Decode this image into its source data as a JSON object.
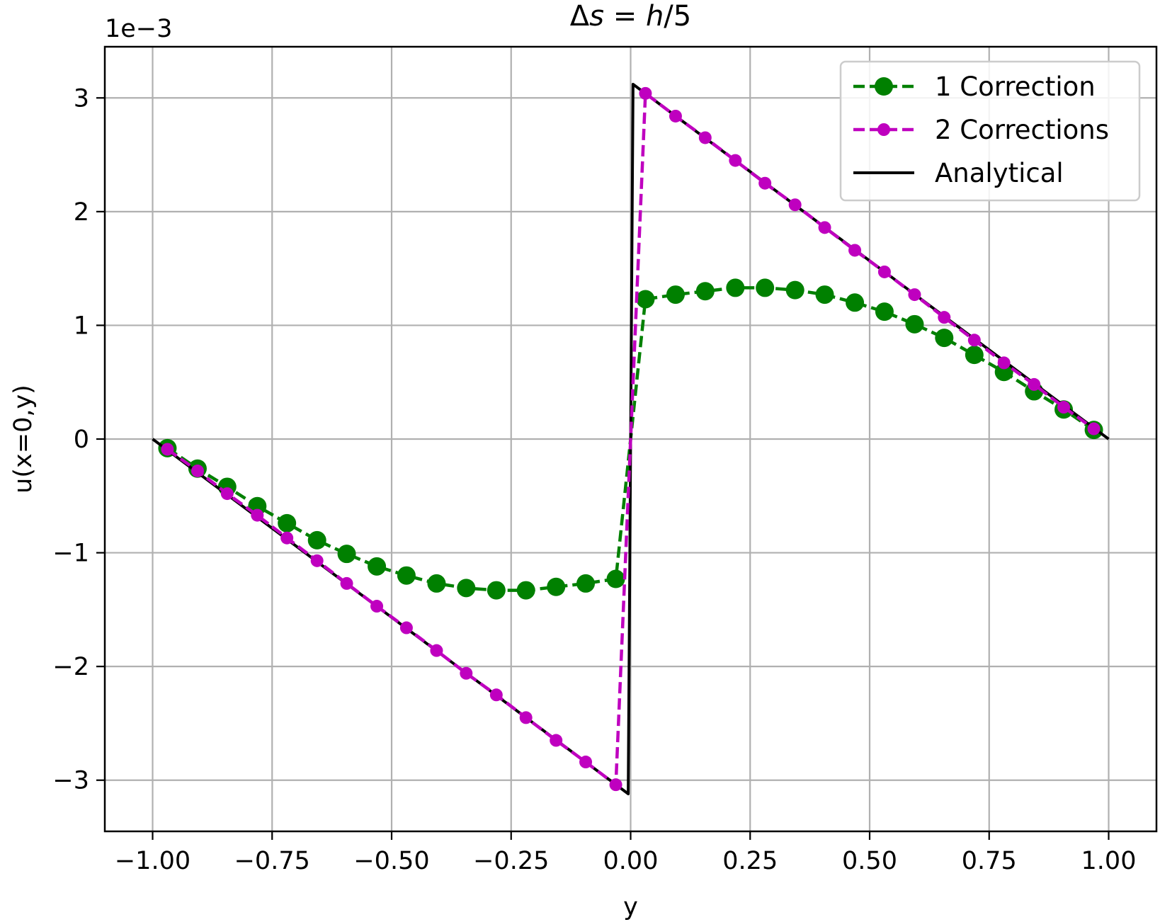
{
  "chart_data": {
    "type": "line",
    "title_parts": [
      "Δ",
      "s",
      " = ",
      "h",
      "/5"
    ],
    "xlabel": "y",
    "ylabel": "u(x=0,y)",
    "y_offset_label": "1e−3",
    "xlim": [
      -1.1,
      1.1
    ],
    "ylim": [
      -3.45,
      3.45
    ],
    "xticks": [
      -1.0,
      -0.75,
      -0.5,
      -0.25,
      0.0,
      0.25,
      0.5,
      0.75,
      1.0
    ],
    "xtick_labels": [
      "−1.00",
      "−0.75",
      "−0.50",
      "−0.25",
      "0.00",
      "0.25",
      "0.50",
      "0.75",
      "1.00"
    ],
    "yticks": [
      -3,
      -2,
      -1,
      0,
      1,
      2,
      3
    ],
    "ytick_labels": [
      "−3",
      "−2",
      "−1",
      "0",
      "1",
      "2",
      "3"
    ],
    "grid": true,
    "legend_position": "top-right",
    "series": [
      {
        "name": "1 Correction",
        "color": "#008000",
        "style": "dashed",
        "marker": "large-circle",
        "x": [
          -0.969,
          -0.906,
          -0.844,
          -0.781,
          -0.719,
          -0.656,
          -0.594,
          -0.531,
          -0.469,
          -0.406,
          -0.344,
          -0.281,
          -0.219,
          -0.156,
          -0.094,
          -0.031,
          0.0,
          0.031,
          0.094,
          0.156,
          0.219,
          0.281,
          0.344,
          0.406,
          0.469,
          0.531,
          0.594,
          0.656,
          0.719,
          0.781,
          0.844,
          0.906,
          0.969
        ],
        "y": [
          -0.08,
          -0.26,
          -0.42,
          -0.59,
          -0.74,
          -0.89,
          -1.01,
          -1.12,
          -1.2,
          -1.27,
          -1.31,
          -1.33,
          -1.33,
          -1.3,
          -1.27,
          -1.23,
          0.0,
          1.23,
          1.27,
          1.3,
          1.33,
          1.33,
          1.31,
          1.27,
          1.2,
          1.12,
          1.01,
          0.89,
          0.74,
          0.59,
          0.42,
          0.26,
          0.08
        ],
        "marker_mask": [
          true,
          true,
          true,
          true,
          true,
          true,
          true,
          true,
          true,
          true,
          true,
          true,
          true,
          true,
          true,
          true,
          false,
          true,
          true,
          true,
          true,
          true,
          true,
          true,
          true,
          true,
          true,
          true,
          true,
          true,
          true,
          true,
          true
        ]
      },
      {
        "name": "2 Corrections",
        "color": "#bf00bf",
        "style": "dashed",
        "marker": "circle",
        "x": [
          -0.969,
          -0.906,
          -0.844,
          -0.781,
          -0.719,
          -0.656,
          -0.594,
          -0.531,
          -0.469,
          -0.406,
          -0.344,
          -0.281,
          -0.219,
          -0.156,
          -0.094,
          -0.031,
          0.0,
          0.031,
          0.094,
          0.156,
          0.219,
          0.281,
          0.344,
          0.406,
          0.469,
          0.531,
          0.594,
          0.656,
          0.719,
          0.781,
          0.844,
          0.906,
          0.969
        ],
        "y": [
          -0.09,
          -0.28,
          -0.48,
          -0.67,
          -0.87,
          -1.07,
          -1.27,
          -1.47,
          -1.66,
          -1.86,
          -2.06,
          -2.25,
          -2.45,
          -2.65,
          -2.84,
          -3.04,
          0.0,
          3.04,
          2.84,
          2.65,
          2.45,
          2.25,
          2.06,
          1.86,
          1.66,
          1.47,
          1.27,
          1.07,
          0.87,
          0.67,
          0.48,
          0.28,
          0.09
        ],
        "marker_mask": [
          true,
          true,
          true,
          true,
          true,
          true,
          true,
          true,
          true,
          true,
          true,
          true,
          true,
          true,
          true,
          true,
          false,
          true,
          true,
          true,
          true,
          true,
          true,
          true,
          true,
          true,
          true,
          true,
          true,
          true,
          true,
          true,
          true
        ]
      },
      {
        "name": "Analytical",
        "color": "#000000",
        "style": "solid",
        "marker": "none",
        "x": [
          -1.0,
          -0.005,
          0.005,
          1.0
        ],
        "y": [
          0.0,
          -3.12,
          3.12,
          0.0
        ]
      }
    ]
  }
}
